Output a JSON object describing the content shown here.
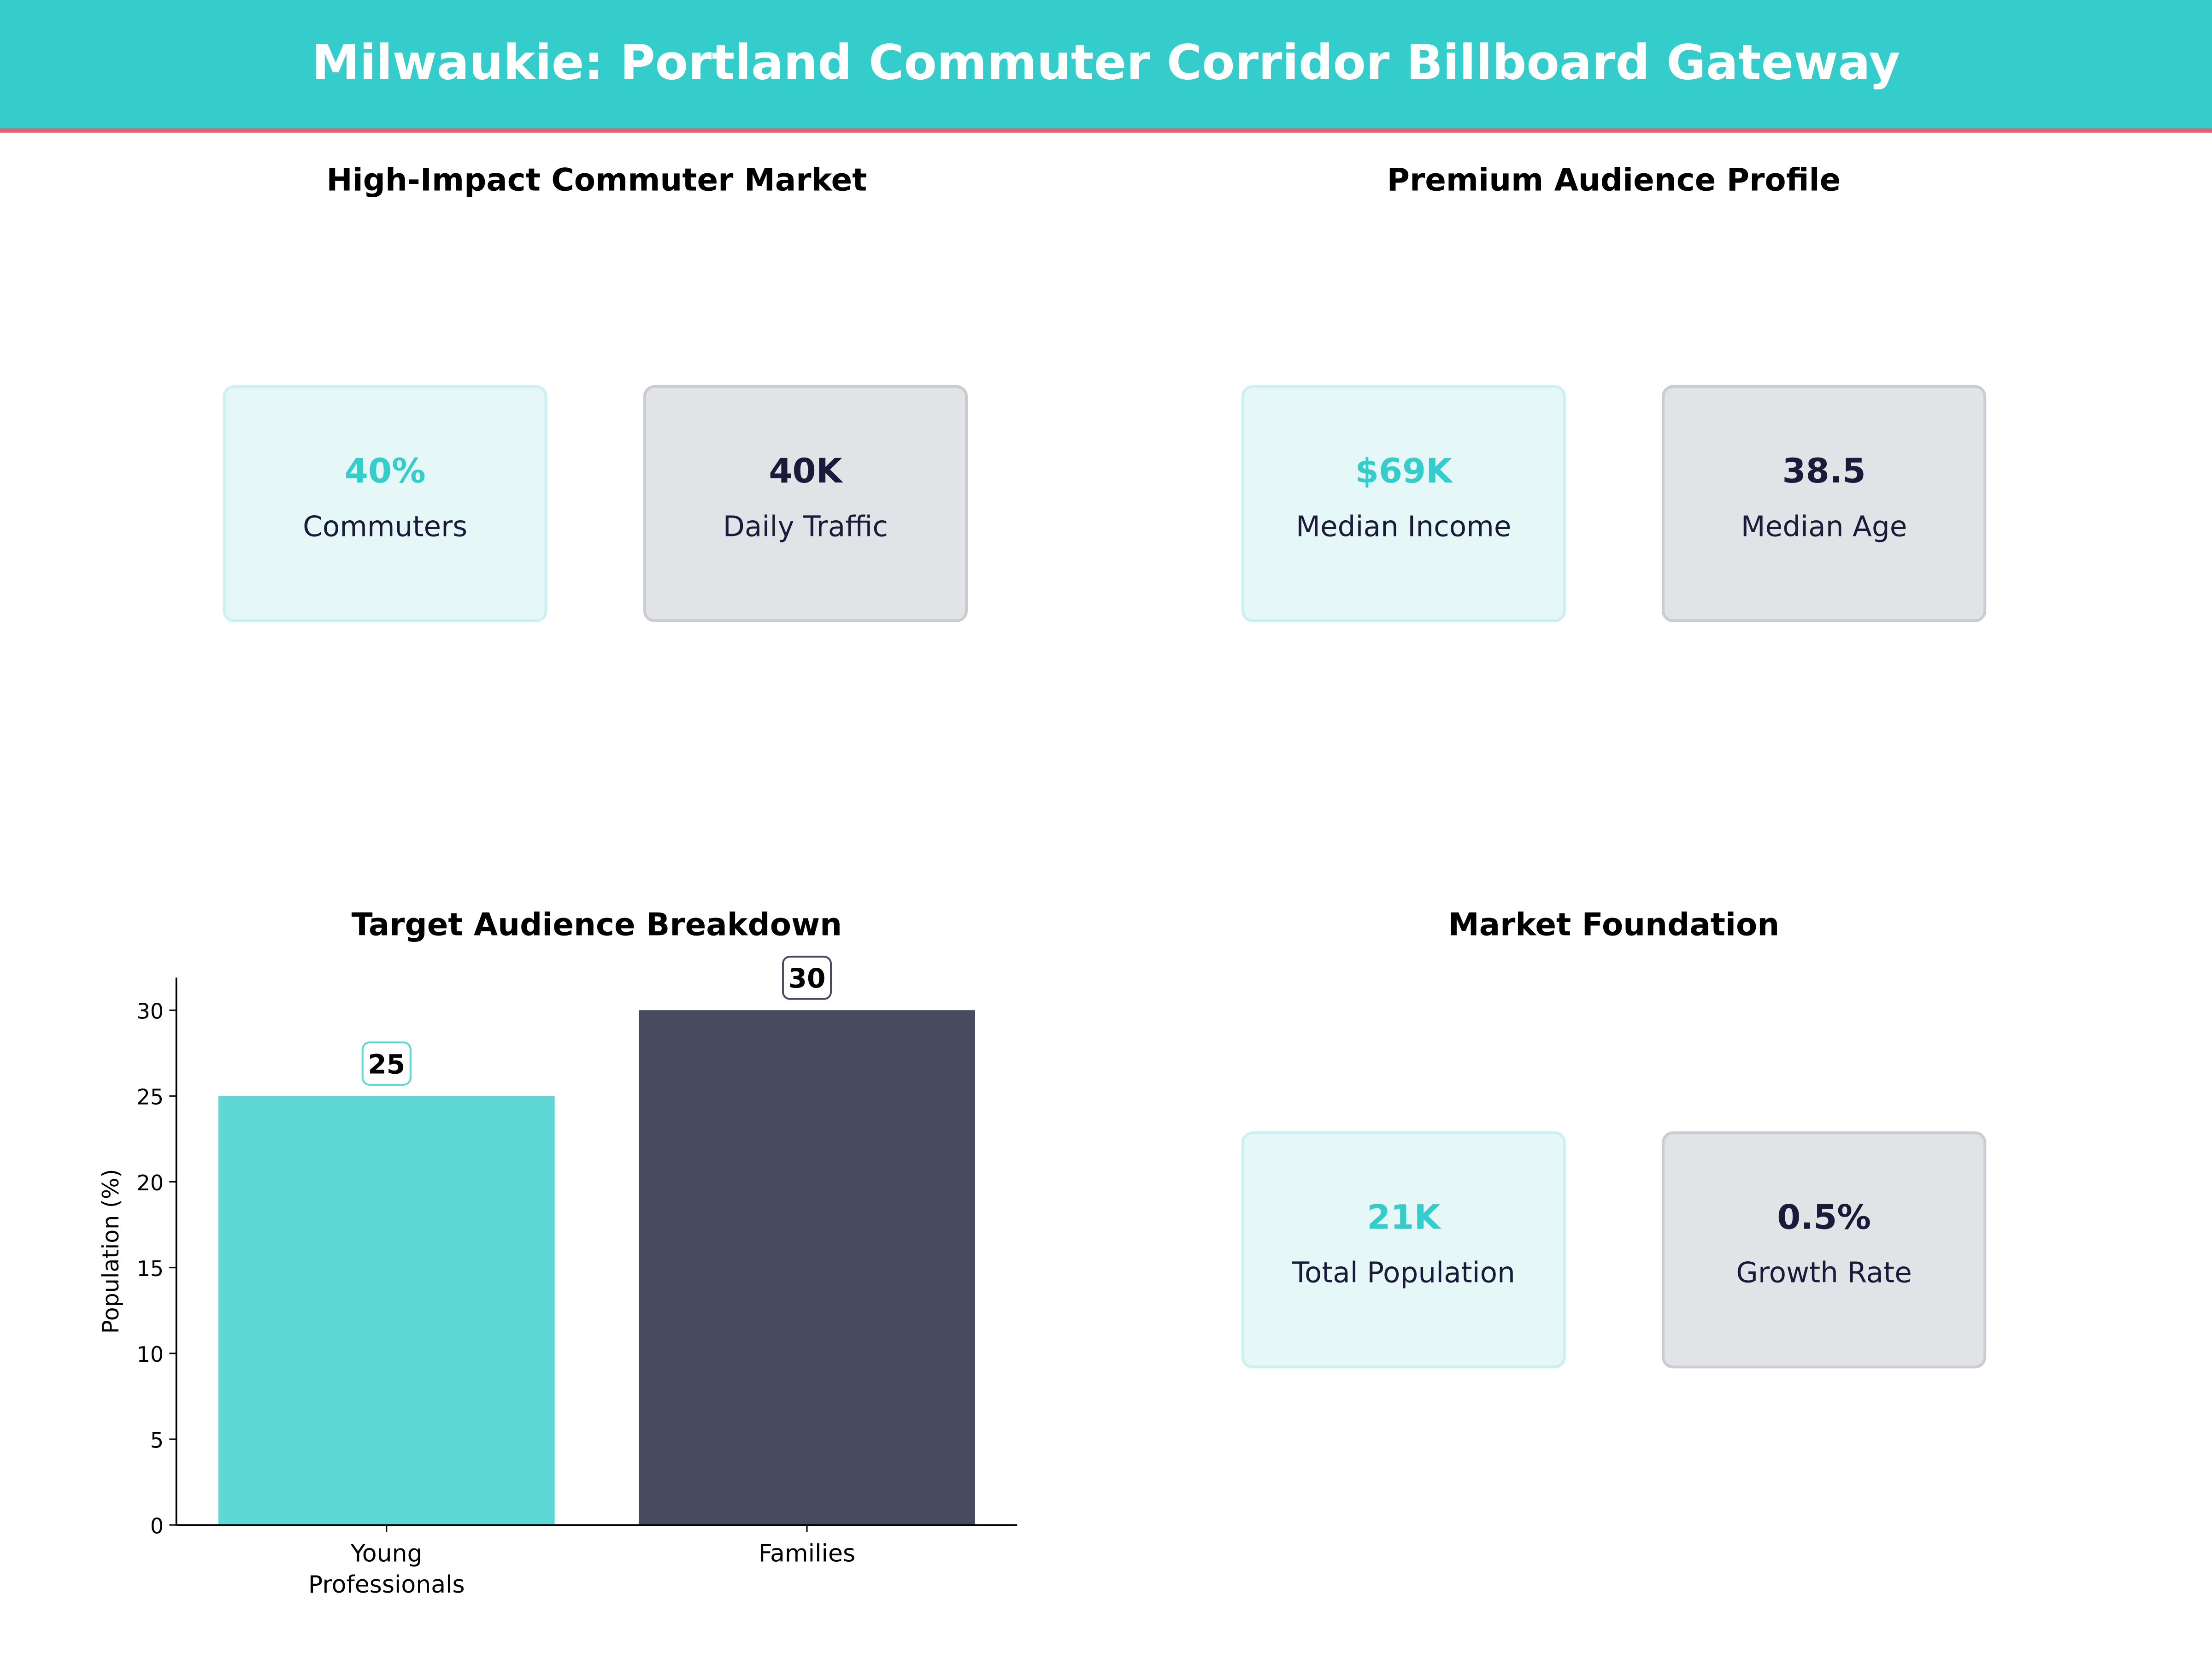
{
  "header": {
    "title": "Milwaukie: Portland Commuter Corridor Billboard Gateway"
  },
  "colors": {
    "header_bg": "#35CCCC",
    "accent_line": "#E85D75",
    "teal": "#5ED8D5",
    "navy": "#464B60",
    "dark_text": "#1A1B3A"
  },
  "panels": [
    {
      "title": "High-Impact Commuter Market",
      "cards": [
        {
          "value": "40%",
          "label": "Commuters",
          "style": "teal"
        },
        {
          "value": "40K",
          "label": "Daily Traffic",
          "style": "gray"
        }
      ]
    },
    {
      "title": "Premium Audience Profile",
      "cards": [
        {
          "value": "$69K",
          "label": "Median Income",
          "style": "teal"
        },
        {
          "value": "38.5",
          "label": "Median Age",
          "style": "gray"
        }
      ]
    },
    {
      "title": "Market Foundation",
      "cards": [
        {
          "value": "21K",
          "label": "Total Population",
          "style": "teal"
        },
        {
          "value": "0.5%",
          "label": "Growth Rate",
          "style": "gray"
        }
      ]
    }
  ],
  "chart_data": {
    "type": "bar",
    "title": "Target Audience Breakdown",
    "categories": [
      "Young\nProfessionals",
      "Families"
    ],
    "values": [
      25,
      30
    ],
    "data_labels": [
      "25",
      "30"
    ],
    "colors": [
      "#5ED8D5",
      "#464B60"
    ],
    "xlabel": "",
    "ylabel": "Population (%)",
    "ylim": [
      0,
      31.9
    ],
    "yticks": [
      0,
      5,
      10,
      15,
      20,
      25,
      30
    ],
    "grid": false
  }
}
